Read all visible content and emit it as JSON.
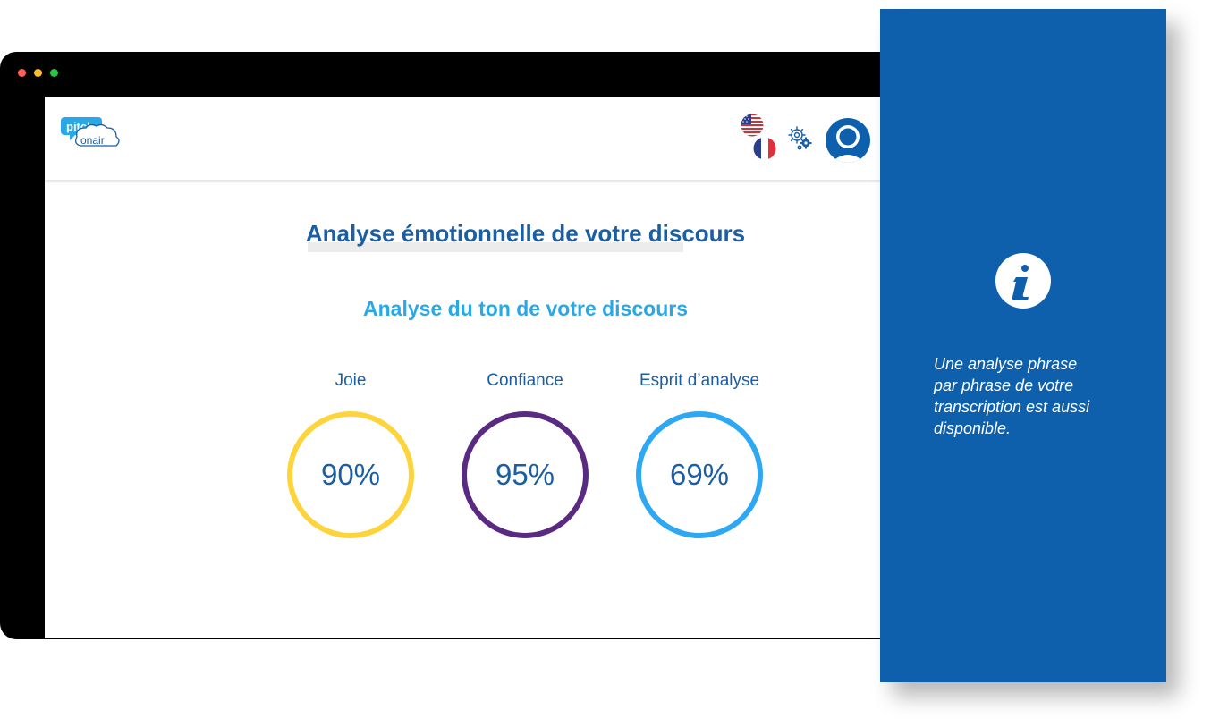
{
  "browser": {
    "window_controls": [
      "close",
      "minimize",
      "maximize"
    ]
  },
  "header": {
    "logo": {
      "line1": "pitch",
      "line2": "onair"
    },
    "language_options": [
      {
        "code": "en",
        "icon": "us-flag-icon"
      },
      {
        "code": "fr",
        "icon": "fr-flag-icon"
      }
    ],
    "settings_icon": "gears-icon",
    "avatar_icon": "user-avatar-icon"
  },
  "main": {
    "title": "Analyse émotionnelle de votre discours",
    "subtitle": "Analyse du ton de votre discours",
    "metrics": [
      {
        "label": "Joie",
        "value": "90%",
        "color": "#fdd43c"
      },
      {
        "label": "Confiance",
        "value": "95%",
        "color": "#5a2a82"
      },
      {
        "label": "Esprit d’analyse",
        "value": "69%",
        "color": "#2ea8f2"
      }
    ]
  },
  "info_panel": {
    "icon": "info-icon",
    "background": "#0e60ad",
    "text_lines": [
      "Une analyse phrase",
      "par phrase de votre",
      "transcription est aussi",
      "disponible."
    ]
  },
  "colors": {
    "primary": "#1a5ea3",
    "accent": "#29a8e8"
  }
}
